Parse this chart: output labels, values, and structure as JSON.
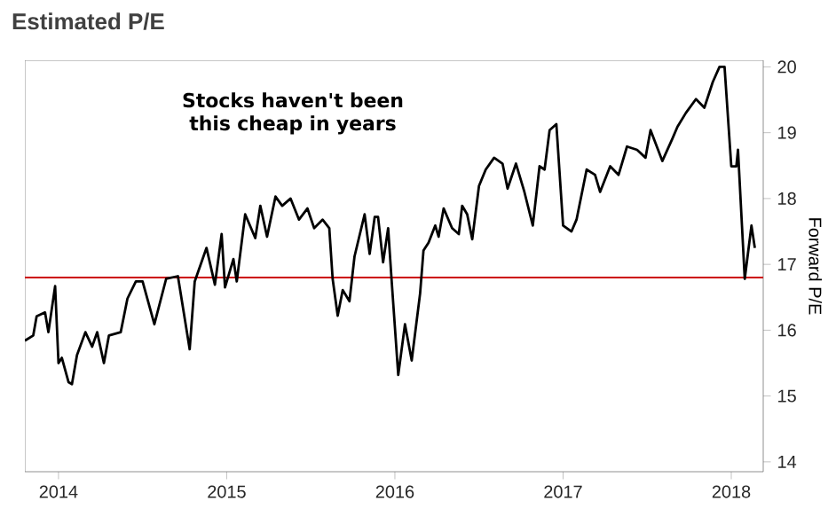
{
  "chart_data": {
    "type": "line",
    "title": "Estimated P/E",
    "ylabel": "Forward P/E",
    "annotations": [
      "Stocks haven't been this cheap in years"
    ],
    "x": [
      2013.8,
      2013.85,
      2013.87,
      2013.92,
      2013.94,
      2013.98,
      2014.0,
      2014.02,
      2014.06,
      2014.08,
      2014.11,
      2014.16,
      2014.2,
      2014.23,
      2014.27,
      2014.3,
      2014.37,
      2014.41,
      2014.46,
      2014.5,
      2014.57,
      2014.64,
      2014.71,
      2014.78,
      2014.81,
      2014.88,
      2014.93,
      2014.97,
      2014.99,
      2015.04,
      2015.06,
      2015.11,
      2015.17,
      2015.2,
      2015.24,
      2015.29,
      2015.33,
      2015.38,
      2015.43,
      2015.48,
      2015.52,
      2015.57,
      2015.61,
      2015.63,
      2015.66,
      2015.69,
      2015.73,
      2015.76,
      2015.82,
      2015.85,
      2015.88,
      2015.9,
      2015.93,
      2015.96,
      2015.98,
      2016.02,
      2016.06,
      2016.1,
      2016.15,
      2016.17,
      2016.2,
      2016.24,
      2016.26,
      2016.29,
      2016.34,
      2016.38,
      2016.4,
      2016.43,
      2016.46,
      2016.5,
      2016.54,
      2016.59,
      2016.64,
      2016.67,
      2016.72,
      2016.77,
      2016.82,
      2016.86,
      2016.89,
      2016.92,
      2016.96,
      2017.0,
      2017.05,
      2017.08,
      2017.14,
      2017.19,
      2017.22,
      2017.28,
      2017.33,
      2017.38,
      2017.44,
      2017.49,
      2017.52,
      2017.59,
      2017.65,
      2017.68,
      2017.73,
      2017.79,
      2017.84,
      2017.89,
      2017.93,
      2017.96,
      2018.0,
      2018.03,
      2018.04,
      2018.08,
      2018.12,
      2018.14
    ],
    "values": [
      15.84,
      15.92,
      16.21,
      16.27,
      15.97,
      16.67,
      15.5,
      15.58,
      15.21,
      15.18,
      15.62,
      15.97,
      15.75,
      15.97,
      15.5,
      15.92,
      15.97,
      16.48,
      16.74,
      16.74,
      16.09,
      16.78,
      16.82,
      15.71,
      16.74,
      17.25,
      16.69,
      17.46,
      16.65,
      17.08,
      16.74,
      17.76,
      17.4,
      17.89,
      17.42,
      18.03,
      17.89,
      18.0,
      17.68,
      17.85,
      17.55,
      17.68,
      17.55,
      16.78,
      16.22,
      16.61,
      16.44,
      17.12,
      17.76,
      17.16,
      17.72,
      17.72,
      17.03,
      17.55,
      16.78,
      15.32,
      16.09,
      15.54,
      16.56,
      17.21,
      17.33,
      17.59,
      17.42,
      17.85,
      17.55,
      17.46,
      17.89,
      17.76,
      17.38,
      18.19,
      18.44,
      18.62,
      18.53,
      18.15,
      18.53,
      18.1,
      17.59,
      18.49,
      18.44,
      19.04,
      19.13,
      17.59,
      17.5,
      17.68,
      18.44,
      18.36,
      18.1,
      18.49,
      18.36,
      18.79,
      18.74,
      18.62,
      19.04,
      18.57,
      18.91,
      19.09,
      19.3,
      19.51,
      19.38,
      19.77,
      20.0,
      20.0,
      18.49,
      18.49,
      18.74,
      16.78,
      17.59,
      17.25
    ],
    "color": "#000000",
    "marker": "none",
    "line_style": "solid",
    "xlim": [
      2013.8,
      2018.19
    ],
    "ylim": [
      13.85,
      20.1
    ],
    "xticks": [
      2014,
      2015,
      2016,
      2017,
      2018
    ],
    "yticks": [
      14,
      15,
      16,
      17,
      18,
      19,
      20
    ],
    "ref_lines": [
      {
        "axis": "y",
        "value": 16.8,
        "color": "#cc0000"
      }
    ]
  }
}
